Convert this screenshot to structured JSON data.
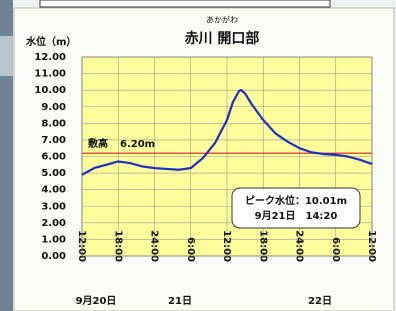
{
  "chart_data": {
    "type": "line",
    "title": "赤川 開口部",
    "subtitle": "あかがわ",
    "ylabel": "水位（m）",
    "x": [
      0,
      2,
      4,
      6,
      8,
      10,
      12,
      14,
      16,
      18,
      20,
      22,
      24,
      25,
      26,
      26.33,
      27,
      28,
      30,
      32,
      34,
      36,
      38,
      40,
      42,
      44,
      46,
      48
    ],
    "series": [
      {
        "color": "#1f2fbf",
        "values": [
          4.9,
          5.3,
          5.5,
          5.7,
          5.6,
          5.4,
          5.3,
          5.25,
          5.2,
          5.3,
          5.9,
          6.8,
          8.2,
          9.3,
          9.95,
          10.01,
          9.8,
          9.2,
          8.2,
          7.4,
          6.9,
          6.5,
          6.25,
          6.15,
          6.1,
          6.0,
          5.8,
          5.55
        ]
      }
    ],
    "xlim": [
      0,
      48
    ],
    "xticks": [
      {
        "value": 0,
        "label": "12:00"
      },
      {
        "value": 6,
        "label": "18:00"
      },
      {
        "value": 12,
        "label": "24:00"
      },
      {
        "value": 18,
        "label": "6:00"
      },
      {
        "value": 24,
        "label": "12:00"
      },
      {
        "value": 30,
        "label": "18:00"
      },
      {
        "value": 36,
        "label": "24:00"
      },
      {
        "value": 42,
        "label": "6:00"
      },
      {
        "value": 48,
        "label": "12:00"
      }
    ],
    "date_labels": [
      "9月20日",
      "21日",
      "22日"
    ],
    "ylim": [
      0,
      12
    ],
    "yticks": [
      {
        "value": 0,
        "label": "0.00"
      },
      {
        "value": 1,
        "label": "1.00"
      },
      {
        "value": 2,
        "label": "2.00"
      },
      {
        "value": 3,
        "label": "3.00"
      },
      {
        "value": 4,
        "label": "4.00"
      },
      {
        "value": 5,
        "label": "5.00"
      },
      {
        "value": 6,
        "label": "6.00"
      },
      {
        "value": 7,
        "label": "7.00"
      },
      {
        "value": 8,
        "label": "8.00"
      },
      {
        "value": 9,
        "label": "9.00"
      },
      {
        "value": 10,
        "label": "10.00"
      },
      {
        "value": 11,
        "label": "11.00"
      },
      {
        "value": 12,
        "label": "12.00"
      }
    ],
    "grid": true,
    "threshold": {
      "name": "敷高",
      "value": 6.2,
      "value_label": "6.20m",
      "color": "#cc2222"
    },
    "peak_annotation": [
      "ピーク水位：10.01m",
      "9月21日　14:20"
    ]
  }
}
